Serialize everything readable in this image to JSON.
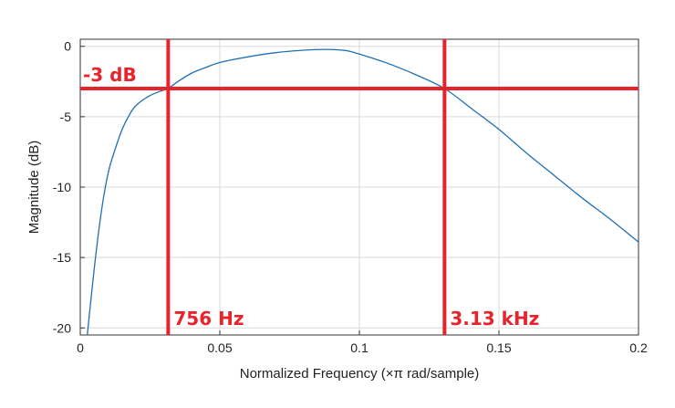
{
  "chart_data": {
    "type": "line",
    "title": "",
    "xlabel": "Normalized Frequency (×π rad/sample)",
    "ylabel": "Magnitude (dB)",
    "xlim": [
      0,
      0.2
    ],
    "ylim": [
      -20.5,
      0.5
    ],
    "x_ticks": [
      0,
      0.05,
      0.1,
      0.15,
      0.2
    ],
    "x_tick_labels": [
      "0",
      "0.05",
      "0.1",
      "0.15",
      "0.2"
    ],
    "y_ticks": [
      0,
      -5,
      -10,
      -15,
      -20
    ],
    "y_tick_labels": [
      "0",
      "-5",
      "-10",
      "-15",
      "-20"
    ],
    "grid": true,
    "series": [
      {
        "color": "#1f6fb5",
        "x": [
          0.0025,
          0.005,
          0.0075,
          0.01,
          0.0125,
          0.015,
          0.0175,
          0.02,
          0.025,
          0.03,
          0.0315,
          0.035,
          0.04,
          0.045,
          0.05,
          0.06,
          0.07,
          0.08,
          0.0875,
          0.095,
          0.1,
          0.11,
          0.12,
          0.1305,
          0.14,
          0.15,
          0.16,
          0.17,
          0.18,
          0.19,
          0.2
        ],
        "y": [
          -20.5,
          -15.8,
          -11.8,
          -9.0,
          -7.3,
          -5.9,
          -4.9,
          -4.2,
          -3.5,
          -3.1,
          -3.0,
          -2.5,
          -1.9,
          -1.5,
          -1.15,
          -0.75,
          -0.45,
          -0.28,
          -0.22,
          -0.3,
          -0.55,
          -1.2,
          -2.0,
          -3.0,
          -4.4,
          -5.9,
          -7.6,
          -9.2,
          -10.8,
          -12.3,
          -13.9
        ]
      }
    ],
    "annotations": {
      "color": "#e8232b",
      "hline_y": -3,
      "hline_label": "-3 dB",
      "vlines": [
        {
          "x": 0.0315,
          "label": "756 Hz"
        },
        {
          "x": 0.1305,
          "label": "3.13 kHz"
        }
      ]
    }
  }
}
